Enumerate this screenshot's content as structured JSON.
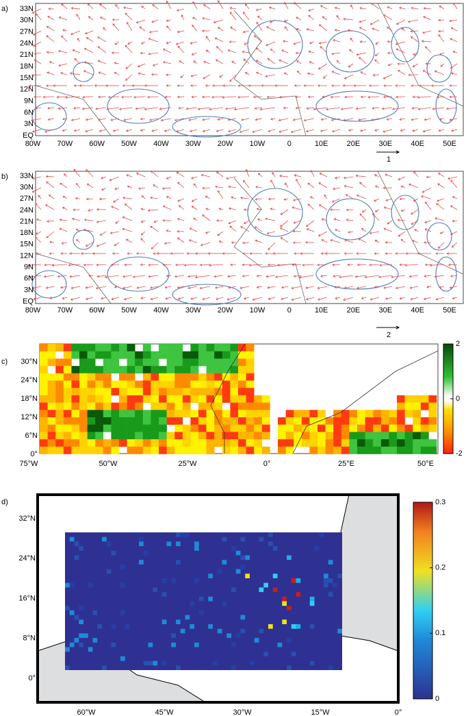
{
  "panels": [
    {
      "label": "a)",
      "lat_labels": [
        "33N",
        "30N",
        "27N",
        "24N",
        "21N",
        "18N",
        "15N",
        "12N",
        "9N",
        "6N",
        "3N",
        "EQ"
      ],
      "lon_labels": [
        "80W",
        "70W",
        "60W",
        "50W",
        "40W",
        "30W",
        "20W",
        "10W",
        "0",
        "10E",
        "20E",
        "30E",
        "40E",
        "50E"
      ],
      "reference_label": "1"
    },
    {
      "label": "b)",
      "lat_labels": [
        "33N",
        "30N",
        "27N",
        "24N",
        "21N",
        "18N",
        "15N",
        "12N",
        "9N",
        "6N",
        "3N",
        "EQ"
      ],
      "lon_labels": [
        "80W",
        "70W",
        "60W",
        "50W",
        "40W",
        "30W",
        "20W",
        "10W",
        "0",
        "10E",
        "20E",
        "30E",
        "40E",
        "50E"
      ],
      "reference_label": "2"
    },
    {
      "label": "c)",
      "lat_labels": [
        "30°N",
        "24°N",
        "18°N",
        "12°N",
        "6°N",
        "0°"
      ],
      "lon_labels": [
        "75°W",
        "50°W",
        "25°W",
        "0°",
        "25°E",
        "50°E"
      ],
      "colorbar_lim": [
        -2,
        2
      ],
      "colorbar_ticks": [
        2,
        0,
        -2
      ]
    },
    {
      "label": "d)",
      "lat_labels": [
        "32°N",
        "24°N",
        "16°N",
        "8°N",
        "0°"
      ],
      "lon_labels": [
        "60°W",
        "45°W",
        "30°W",
        "15°W",
        "0°"
      ],
      "colorbar_lim": [
        0,
        0.3
      ],
      "colorbar_ticks": [
        0.3,
        0.2,
        0.1,
        0
      ]
    }
  ]
}
